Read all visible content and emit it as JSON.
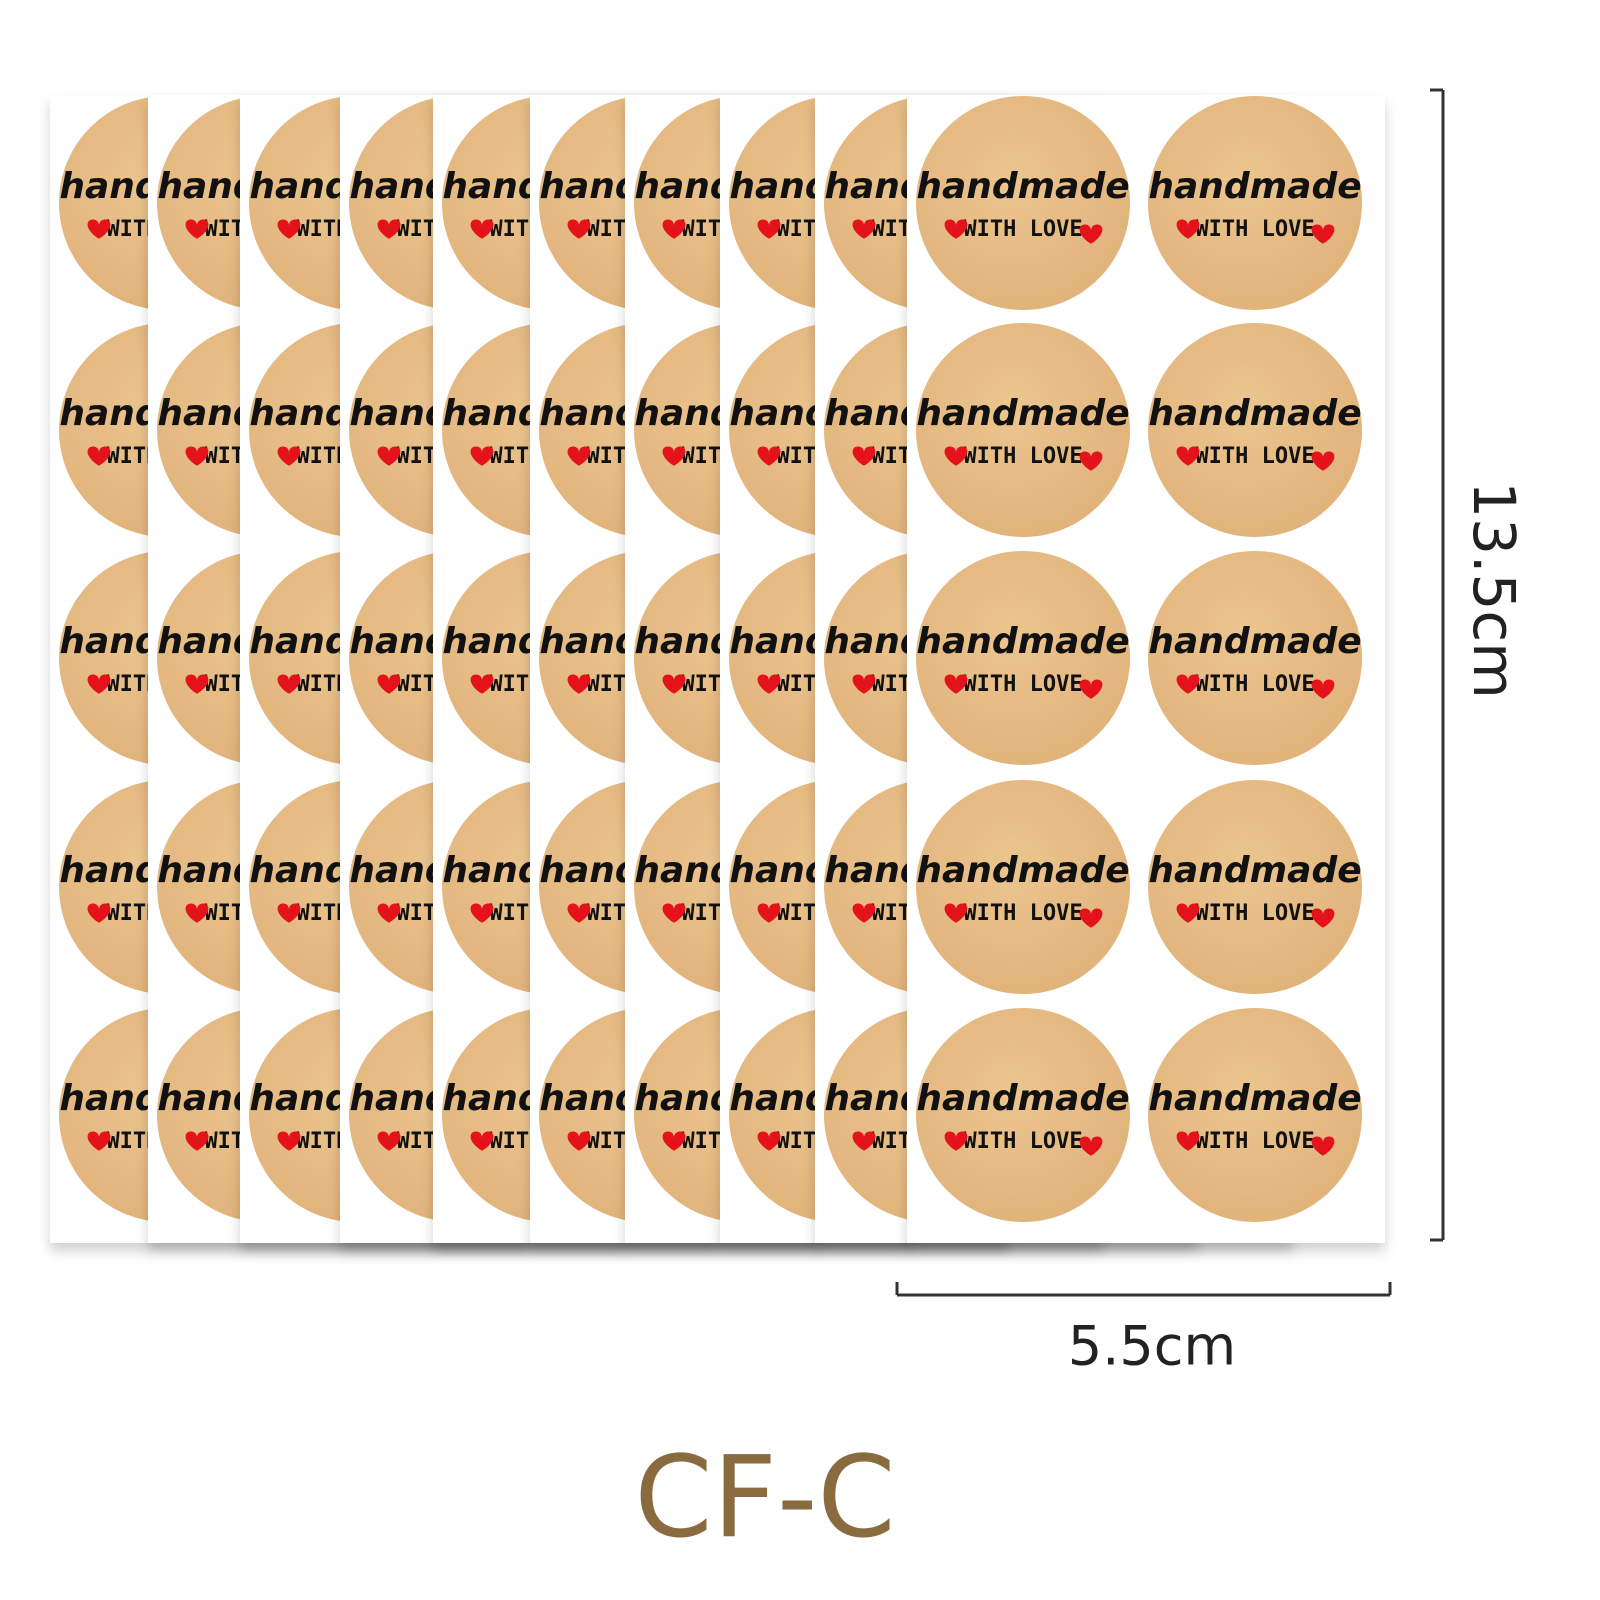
{
  "sticker": {
    "line1": "handmade",
    "line2": "WITH LOVE"
  },
  "dimensions": {
    "height": "13.5cm",
    "width": "5.5cm"
  },
  "model": "CF-C"
}
